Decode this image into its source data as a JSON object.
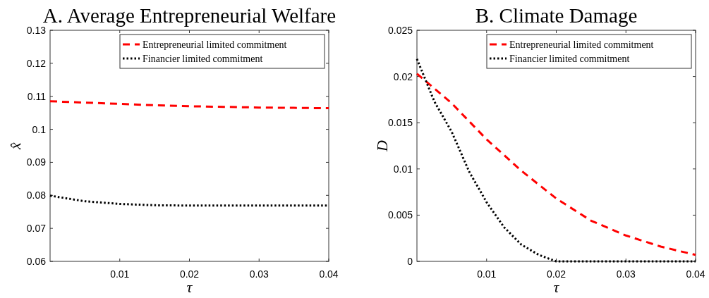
{
  "chart_data": [
    {
      "type": "line",
      "title": "A. Average Entrepreneurial Welfare",
      "xlabel": "τ",
      "ylabel": "x̂",
      "xlim": [
        0,
        0.04
      ],
      "xticks": [
        0.01,
        0.02,
        0.03,
        0.04
      ],
      "ylim": [
        0.06,
        0.13
      ],
      "yticks": [
        0.06,
        0.07,
        0.08,
        0.09,
        0.1,
        0.11,
        0.12,
        0.13
      ],
      "legend": "top right",
      "grid": false,
      "marker": "none",
      "x": [
        0,
        0.005,
        0.01,
        0.015,
        0.02,
        0.025,
        0.03,
        0.035,
        0.04
      ],
      "series": [
        {
          "name": "Entrepreneurial limited commitment",
          "color": "#ff0000",
          "line_style": "dashed",
          "values": [
            0.1085,
            0.1081,
            0.1077,
            0.1073,
            0.107,
            0.1068,
            0.1066,
            0.1065,
            0.1064
          ]
        },
        {
          "name": "Financier limited commitment",
          "color": "#000000",
          "line_style": "dotted",
          "values": [
            0.0799,
            0.0782,
            0.0774,
            0.077,
            0.0769,
            0.0769,
            0.0769,
            0.0769,
            0.0769
          ]
        }
      ]
    },
    {
      "type": "line",
      "title": "B. Climate Damage",
      "xlabel": "τ",
      "ylabel": "D",
      "xlim": [
        0,
        0.04
      ],
      "xticks": [
        0.01,
        0.02,
        0.03,
        0.04
      ],
      "ylim": [
        0,
        0.025
      ],
      "yticks": [
        0,
        0.005,
        0.01,
        0.015,
        0.02,
        0.025
      ],
      "legend": "top right",
      "grid": false,
      "marker": "none",
      "series": [
        {
          "name": "Entrepreneurial limited commitment",
          "color": "#ff0000",
          "line_style": "dashed",
          "x": [
            0,
            0.005,
            0.01,
            0.015,
            0.02,
            0.025,
            0.03,
            0.035,
            0.04
          ],
          "values": [
            0.0203,
            0.0171,
            0.0132,
            0.0098,
            0.0068,
            0.0044,
            0.0028,
            0.0016,
            0.0007
          ]
        },
        {
          "name": "Financier limited commitment",
          "color": "#000000",
          "line_style": "dotted",
          "x": [
            0,
            0.0025,
            0.005,
            0.0075,
            0.01,
            0.0125,
            0.015,
            0.0175,
            0.02,
            0.03,
            0.04
          ],
          "values": [
            0.0219,
            0.0173,
            0.014,
            0.0097,
            0.0064,
            0.0037,
            0.0018,
            0.0007,
            0,
            0,
            0
          ]
        }
      ]
    }
  ]
}
